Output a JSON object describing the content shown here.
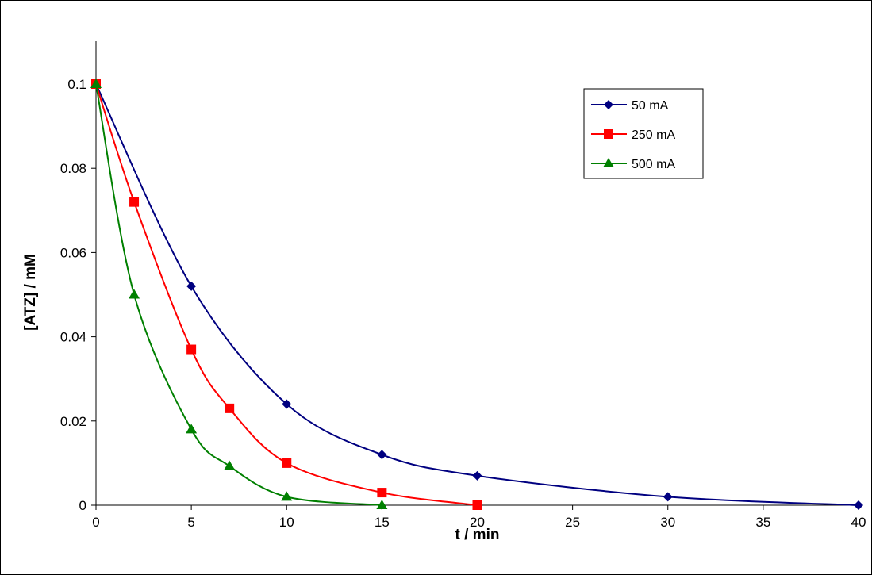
{
  "chart_data": {
    "type": "line",
    "title": "",
    "xlabel": "t / min",
    "ylabel": "[ATZ] / mM",
    "xlim": [
      0,
      40
    ],
    "ylim": [
      0,
      0.1
    ],
    "xticks": [
      0,
      5,
      10,
      15,
      20,
      25,
      30,
      35,
      40
    ],
    "yticks": [
      0,
      0.02,
      0.04,
      0.06,
      0.08,
      0.1
    ],
    "grid": false,
    "legend_position": "top-right",
    "series": [
      {
        "name": "50 mA",
        "color": "#000080",
        "marker": "diamond",
        "x": [
          0,
          5,
          10,
          15,
          20,
          30,
          40
        ],
        "y": [
          0.1,
          0.052,
          0.024,
          0.012,
          0.007,
          0.002,
          0.0
        ]
      },
      {
        "name": "250 mA",
        "color": "#ff0000",
        "marker": "square",
        "x": [
          0,
          2,
          5,
          7,
          10,
          15,
          20
        ],
        "y": [
          0.1,
          0.072,
          0.037,
          0.023,
          0.01,
          0.003,
          0.0
        ]
      },
      {
        "name": "500 mA",
        "color": "#008000",
        "marker": "triangle",
        "x": [
          0,
          2,
          5,
          7,
          10,
          15
        ],
        "y": [
          0.1,
          0.05,
          0.018,
          0.0093,
          0.002,
          0.0
        ]
      }
    ]
  }
}
